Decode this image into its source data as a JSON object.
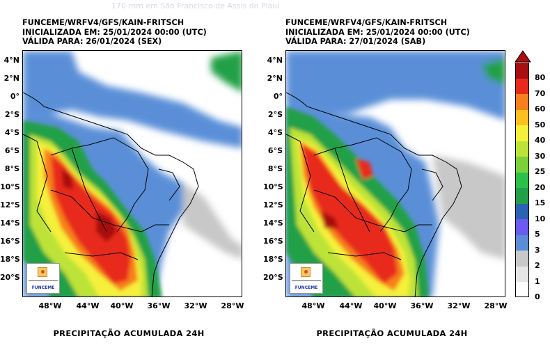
{
  "watermark": "170 mm em São Francisco de Assis do Piauí",
  "panels": [
    {
      "header": [
        "FUNCEME/WRFV4/GFS/KAIN-FRITSCH",
        "INICIALIZADA EM: 25/01/2024 00:00 (UTC)",
        "VÁLIDA PARA: 26/01/2024 (SEX)"
      ],
      "footer": "PRECIPITAÇÃO ACUMULADA 24H"
    },
    {
      "header": [
        "FUNCEME/WRFV4/GFS/KAIN-FRITSCH",
        "INICIALIZADA EM: 25/01/2024 00:00 (UTC)",
        "VÁLIDA PARA: 27/01/2024 (SAB)"
      ],
      "footer": "PRECIPITAÇÃO ACUMULADA 24H"
    }
  ],
  "lat_labels": [
    "4°N",
    "2°N",
    "0°",
    "2°S",
    "4°S",
    "6°S",
    "8°S",
    "10°S",
    "12°S",
    "14°S",
    "16°S",
    "18°S",
    "20°S"
  ],
  "lon_labels": [
    "48°W",
    "44°W",
    "40°W",
    "36°W",
    "32°W",
    "28°W"
  ],
  "logo_text": "FUNCEME",
  "colorbar": {
    "levels": [
      "0",
      "1",
      "2",
      "3",
      "5",
      "10",
      "15",
      "20",
      "25",
      "30",
      "40",
      "50",
      "60",
      "70",
      "80"
    ],
    "colors": [
      "#ffffff",
      "#e6e6e6",
      "#c8c8c8",
      "#5a8fd8",
      "#6a5cf0",
      "#2a63b5",
      "#23a047",
      "#2bc04a",
      "#7ad23a",
      "#bde339",
      "#f5f03a",
      "#fcc020",
      "#f7801c",
      "#e82a1c",
      "#a90e10"
    ]
  }
}
